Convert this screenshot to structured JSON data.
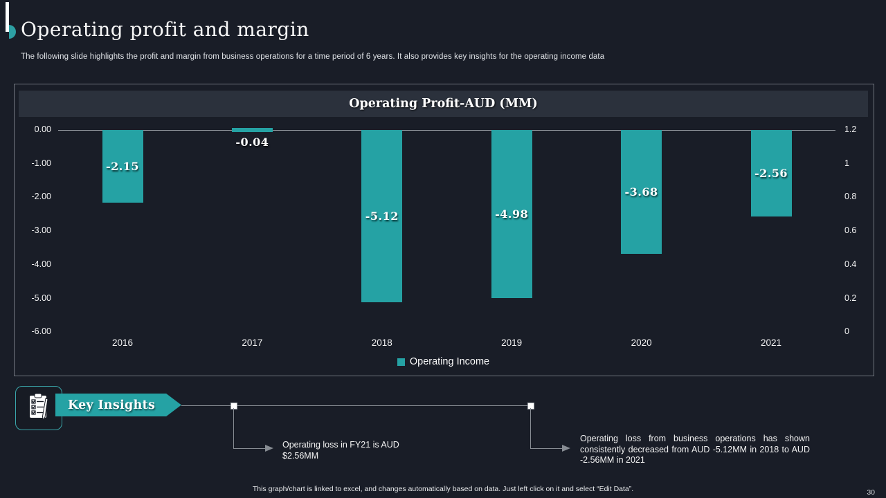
{
  "slide": {
    "title": "Operating profit and margin",
    "subtitle": "The following slide highlights the profit and margin from business operations for a time period of 6 years. It also provides key insights for the operating income data",
    "footer_note": "This graph/chart is linked to excel, and changes automatically based on data. Just left click on it and select “Edit Data”.",
    "page_number": "30"
  },
  "colors": {
    "background": "#191d27",
    "accent_teal": "#25a2a4",
    "title_band_bg": "#2b313c",
    "frame_border": "#71767f",
    "connector_gray": "#878c93"
  },
  "chart_data": {
    "type": "bar",
    "title": "Operating Profit-AUD (MM)",
    "categories": [
      "2016",
      "2017",
      "2018",
      "2019",
      "2020",
      "2021"
    ],
    "series": [
      {
        "name": "Operating Income",
        "values": [
          -2.15,
          -0.04,
          -5.12,
          -4.98,
          -3.68,
          -2.56
        ]
      }
    ],
    "value_labels": [
      "-2.15",
      "-0.04",
      "-5.12",
      "-4.98",
      "-3.68",
      "-2.56"
    ],
    "left_axis": {
      "ticks": [
        "0.00",
        "-1.00",
        "-2.00",
        "-3.00",
        "-4.00",
        "-5.00",
        "-6.00"
      ],
      "range": [
        0,
        -6
      ]
    },
    "right_axis": {
      "ticks": [
        "1.2",
        "1",
        "0.8",
        "0.6",
        "0.4",
        "0.2",
        "0"
      ],
      "range": [
        1.2,
        0
      ]
    },
    "legend": {
      "label": "Operating Income",
      "position": "bottom"
    },
    "grid": false,
    "bar_color": "#25a2a4"
  },
  "insights": {
    "banner_label": "Key Insights",
    "icon": "clipboard-checklist-icon",
    "callouts": [
      {
        "text": "Operating loss in FY21 is AUD $2.56MM"
      },
      {
        "text": "Operating loss from business operations has shown consistently decreased from AUD -5.12MM in 2018 to AUD -2.56MM in 2021"
      }
    ]
  }
}
